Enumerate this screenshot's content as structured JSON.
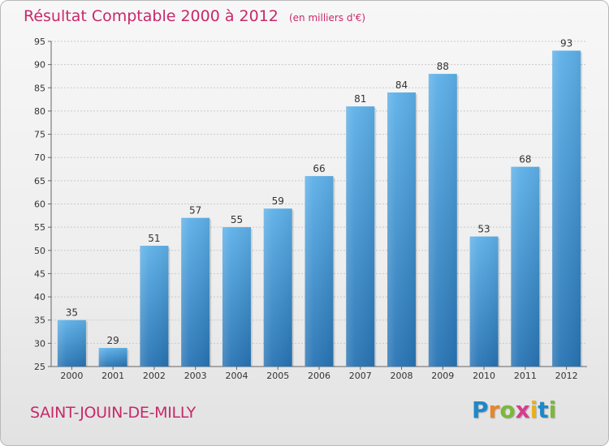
{
  "title": "Résultat Comptable 2000 à 2012",
  "unit_label": "(en milliers d'€)",
  "commune": "SAINT-JOUIN-DE-MILLY",
  "logo": {
    "text": "Proxiti",
    "letters": [
      "P",
      "r",
      "o",
      "x",
      "i",
      "t",
      "i"
    ],
    "colors": [
      "#1e88c8",
      "#e8862a",
      "#7cb83a",
      "#d83c8c",
      "#e8b020",
      "#1e88c8",
      "#7cb83a"
    ]
  },
  "colors": {
    "accent": "#c8286a",
    "bar_top": "#5aaee6",
    "bar_bottom": "#2a78b8"
  },
  "chart_data": {
    "type": "bar",
    "title": "Résultat Comptable 2000 à 2012",
    "ylabel": "(en milliers d'€)",
    "xlabel": "",
    "categories": [
      "2000",
      "2001",
      "2002",
      "2003",
      "2004",
      "2005",
      "2006",
      "2007",
      "2008",
      "2009",
      "2010",
      "2011",
      "2012"
    ],
    "values": [
      35,
      29,
      51,
      57,
      55,
      59,
      66,
      81,
      84,
      88,
      53,
      68,
      93
    ],
    "ylim": [
      25,
      95
    ],
    "yticks": [
      25,
      30,
      35,
      40,
      45,
      50,
      55,
      60,
      65,
      70,
      75,
      80,
      85,
      90,
      95
    ],
    "grid": true
  }
}
